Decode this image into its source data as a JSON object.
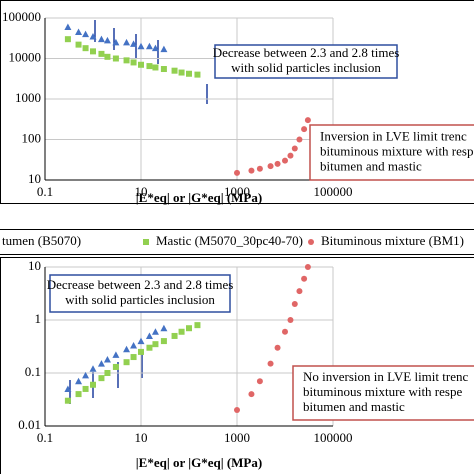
{
  "chart_data": [
    {
      "type": "scatter",
      "xlog": true,
      "ylog": true,
      "grid": true,
      "xlim": [
        0.1,
        100000
      ],
      "xticks": [
        0.1,
        10,
        1000,
        100000
      ],
      "ylim": [
        10,
        100000
      ],
      "yticks": [
        10,
        100,
        1000,
        10000,
        100000
      ],
      "xlabel": "|E*eq| or |G*eq| (MPa)",
      "series": [
        {
          "color": "#4472c4",
          "marker": "triangle",
          "x": [
            0.3,
            0.5,
            0.7,
            1,
            1.5,
            2,
            3,
            5,
            7,
            10,
            15,
            20,
            30
          ],
          "values": [
            60000,
            45000,
            40000,
            35000,
            30000,
            28000,
            25000,
            25000,
            23000,
            20000,
            20000,
            18000,
            17000
          ]
        },
        {
          "color": "#92d050",
          "marker": "square",
          "x": [
            0.3,
            0.5,
            0.7,
            1,
            1.5,
            2,
            3,
            5,
            7,
            10,
            15,
            20,
            30,
            50,
            70,
            100,
            150
          ],
          "values": [
            30000,
            22000,
            18000,
            15000,
            13000,
            11000,
            10000,
            9000,
            8000,
            7000,
            6500,
            6000,
            5500,
            5000,
            4500,
            4200,
            4000
          ]
        },
        {
          "color": "#e06666",
          "marker": "circle",
          "x": [
            1000,
            2000,
            3000,
            5000,
            7000,
            10000,
            13000,
            16000,
            20000,
            25000,
            30000
          ],
          "values": [
            15,
            17,
            19,
            22,
            25,
            30,
            40,
            60,
            100,
            180,
            300
          ]
        }
      ],
      "annotations": [
        {
          "lines": [
            "Decrease between 2.3 and 2.8 times",
            "with solid particles inclusion"
          ],
          "color": "#2f4f9f"
        },
        {
          "lines": [
            "Inversion in LVE limit trenc",
            "bituminous mixture with respe",
            "bitumen and mastic"
          ],
          "color": "#c0504d"
        }
      ]
    },
    {
      "type": "scatter",
      "xlog": true,
      "ylog": true,
      "grid": true,
      "xlim": [
        0.1,
        100000
      ],
      "xticks": [
        0.1,
        10,
        1000,
        100000
      ],
      "ylim": [
        0.01,
        10
      ],
      "yticks": [
        0.01,
        0.1,
        1,
        10
      ],
      "xlabel": "|E*eq| or |G*eq| (MPa)",
      "series": [
        {
          "name": "tumen (B5070)",
          "color": "#4472c4",
          "marker": "triangle",
          "x": [
            0.3,
            0.5,
            0.7,
            1,
            1.5,
            2,
            3,
            5,
            7,
            10,
            15,
            20,
            30
          ],
          "values": [
            0.05,
            0.07,
            0.09,
            0.12,
            0.15,
            0.18,
            0.22,
            0.28,
            0.33,
            0.4,
            0.5,
            0.6,
            0.7
          ]
        },
        {
          "name": "Mastic (M5070_30pc40-70)",
          "color": "#92d050",
          "marker": "square",
          "x": [
            0.3,
            0.5,
            0.7,
            1,
            1.5,
            2,
            3,
            5,
            7,
            10,
            15,
            20,
            30,
            50,
            70,
            100,
            150
          ],
          "values": [
            0.03,
            0.04,
            0.05,
            0.06,
            0.08,
            0.1,
            0.13,
            0.16,
            0.2,
            0.25,
            0.3,
            0.35,
            0.4,
            0.5,
            0.6,
            0.7,
            0.8
          ]
        },
        {
          "name": "Bituminous mixture (BM1)",
          "color": "#e06666",
          "marker": "circle",
          "x": [
            1000,
            2000,
            3000,
            5000,
            7000,
            10000,
            13000,
            16000,
            20000,
            25000,
            30000
          ],
          "values": [
            0.02,
            0.04,
            0.07,
            0.15,
            0.3,
            0.6,
            1,
            2,
            3.5,
            6,
            10
          ]
        }
      ],
      "annotations": [
        {
          "lines": [
            "Decrease between 2.3 and 2.8 times",
            "with solid particles inclusion"
          ],
          "color": "#2f4f9f"
        },
        {
          "lines": [
            "No inversion in LVE limit trenc",
            "bituminous mixture with respe",
            "bitumen and mastic"
          ],
          "color": "#c0504d"
        }
      ]
    }
  ]
}
